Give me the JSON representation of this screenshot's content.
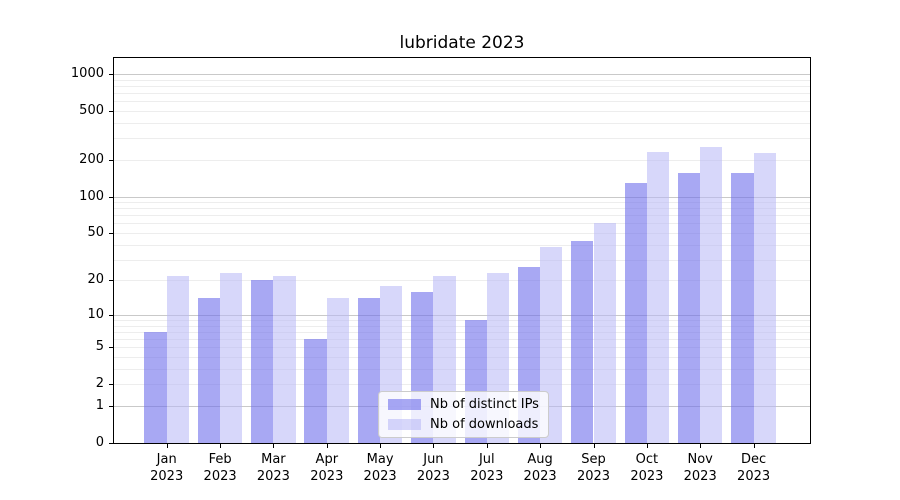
{
  "chart_data": {
    "type": "bar",
    "title": "lubridate 2023",
    "categories": [
      "Jan 2023",
      "Feb 2023",
      "Mar 2023",
      "Apr 2023",
      "May 2023",
      "Jun 2023",
      "Jul 2023",
      "Aug 2023",
      "Sep 2023",
      "Oct 2023",
      "Nov 2023",
      "Dec 2023"
    ],
    "series": [
      {
        "name": "Nb of distinct IPs",
        "color": "rgba(110,110,235,0.60)",
        "values": [
          7,
          14,
          20,
          6,
          14,
          16,
          9,
          26,
          43,
          130,
          157,
          156
        ]
      },
      {
        "name": "Nb of downloads",
        "color": "rgba(183,183,245,0.55)",
        "values": [
          22,
          23,
          22,
          14,
          18,
          22,
          23,
          38,
          60,
          233,
          255,
          225
        ]
      }
    ],
    "yscale": "log10(1+y)",
    "yticks": [
      0,
      1,
      2,
      5,
      10,
      20,
      50,
      100,
      200,
      500,
      1000
    ],
    "ylim": [
      0,
      1340
    ],
    "xlabel": "",
    "ylabel": "",
    "grid": "horizontal log major and minor gridlines",
    "legend_position": "inside plot, lower center",
    "colors": {
      "major_grid": "#c9c9c9",
      "minor_grid": "#ededed",
      "spine": "#000000"
    }
  }
}
